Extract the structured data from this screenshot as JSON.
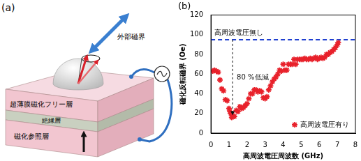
{
  "diagram": {
    "label": "(a)",
    "external_field": "外部磁界",
    "layers": [
      "超薄膜磁化フリー層",
      "絶縁層",
      "磁化参照層"
    ]
  },
  "chart_data": {
    "type": "scatter",
    "title": "(b)",
    "x_label": "高周波電圧周波数 (GHz)",
    "y_label": "磁化反転磁界 (Oe)",
    "xlim": [
      0,
      8
    ],
    "xticks": [
      0,
      1,
      2,
      3,
      4,
      5,
      6,
      7,
      8
    ],
    "ylim": [
      0,
      120
    ],
    "yticks": [
      0,
      20,
      40,
      60,
      80,
      100,
      120
    ],
    "grid": false,
    "legend": "lower right",
    "series": [
      {
        "name": "高周波電圧有り",
        "color": "#e8212b",
        "marker": "star",
        "x": [
          0.1,
          0.2,
          0.3,
          0.4,
          0.5,
          0.6,
          0.7,
          0.8,
          0.9,
          1.0,
          1.05,
          1.1,
          1.15,
          1.2,
          1.3,
          1.4,
          1.5,
          1.6,
          1.7,
          1.8,
          1.9,
          2.0,
          2.1,
          2.2,
          2.3,
          2.4,
          2.5,
          2.6,
          2.7,
          2.8,
          2.9,
          3.0,
          3.1,
          3.2,
          3.3,
          3.4,
          3.5,
          3.6,
          3.7,
          3.8,
          3.9,
          4.0,
          4.1,
          4.2,
          4.3,
          4.4,
          4.5,
          4.6,
          4.7,
          4.8,
          4.9,
          5.0,
          5.1,
          5.2,
          5.3,
          5.4,
          5.5,
          5.6,
          5.7,
          5.8,
          5.9,
          6.0,
          6.1,
          6.2,
          6.3,
          6.4,
          6.5,
          6.6,
          6.7,
          6.8,
          6.9,
          7.0,
          7.05
        ],
        "values": [
          63,
          64,
          63,
          62,
          54,
          45,
          43,
          34,
          33,
          25,
          22,
          20,
          16,
          18,
          17,
          23,
          22,
          27,
          25,
          26,
          28,
          30,
          35,
          40,
          40,
          44,
          44,
          42,
          43,
          42,
          36,
          35,
          37,
          44,
          48,
          52,
          55,
          57,
          60,
          64,
          63,
          70,
          64,
          64,
          70,
          70,
          70,
          75,
          70,
          75,
          75,
          75,
          75,
          76,
          75,
          75,
          76,
          75,
          76,
          77,
          75,
          76,
          77,
          76,
          77,
          80,
          80,
          82,
          83,
          85,
          87,
          90,
          92
        ]
      }
    ],
    "reference_line": {
      "value": 95,
      "label": "高周波電圧無し",
      "color": "#1f3fd0",
      "line_style": "dashed"
    },
    "annotations": [
      {
        "text": "80 %低減",
        "x": 1.2,
        "from": 95,
        "to": 18
      }
    ]
  }
}
